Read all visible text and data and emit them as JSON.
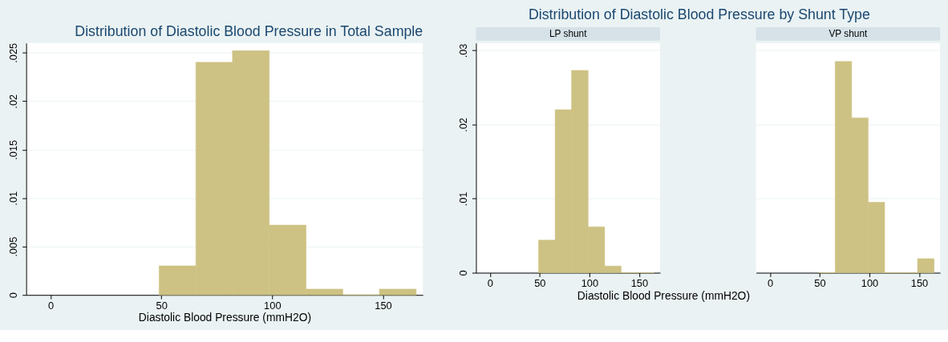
{
  "chart_data": [
    {
      "type": "histogram",
      "title": "Distribution of Diastolic Blood Pressure in Total Sample",
      "xlabel": "Diastolic Blood Pressure (mmH2O)",
      "color": "#cdc283",
      "bins": [
        49,
        65.6,
        82.1,
        98.7,
        115.3,
        131.9,
        148.4,
        165
      ],
      "values": [
        0.003,
        0.024,
        0.0252,
        0.0072,
        0.0006,
        0,
        0.0006
      ],
      "xlim": [
        -11,
        168
      ],
      "xticks": [
        0,
        50,
        100,
        150
      ],
      "ylim": [
        0,
        0.026
      ],
      "yticks": [
        0,
        {
          "value": 0.005,
          "label": ".005"
        },
        {
          "value": 0.01,
          "label": ".01"
        },
        {
          "value": 0.015,
          "label": ".015"
        },
        {
          "value": 0.02,
          "label": ".02"
        },
        {
          "value": 0.025,
          "label": ".025"
        }
      ],
      "grid": "y"
    },
    {
      "type": "histogram",
      "title": "Distribution of Diastolic Blood Pressure by Shunt Type",
      "subtitle": "LP shunt",
      "xlabel": "Diastolic Blood Pressure (mmH2O)",
      "color": "#cdc283",
      "bins": [
        49,
        65.6,
        82.1,
        98.7,
        115.3,
        131.9,
        148.4,
        165
      ],
      "values": [
        0.0044,
        0.022,
        0.0273,
        0.0062,
        0.0009,
        0,
        0
      ],
      "xlim": [
        -14,
        171
      ],
      "xticks": [
        0,
        50,
        100,
        150
      ],
      "ylim": [
        0,
        0.031
      ],
      "yticks": [
        0,
        {
          "value": 0.01,
          "label": ".01"
        },
        {
          "value": 0.02,
          "label": ".02"
        },
        {
          "value": 0.03,
          "label": ".03"
        }
      ],
      "grid": "y"
    },
    {
      "type": "histogram",
      "subtitle": "VP shunt",
      "color": "#cdc283",
      "bins": [
        49,
        65.6,
        82.1,
        98.7,
        115.3,
        131.9,
        148.4,
        165
      ],
      "values": [
        0,
        0.0285,
        0.0209,
        0.0095,
        0,
        0,
        0.0019
      ],
      "xlim": [
        -14,
        171
      ],
      "xticks": [
        0,
        50,
        100,
        150
      ],
      "ylim": [
        0,
        0.031
      ],
      "yticks": [
        0.01,
        0.02,
        0.03
      ],
      "grid": "y",
      "tick_labels": "x"
    }
  ]
}
